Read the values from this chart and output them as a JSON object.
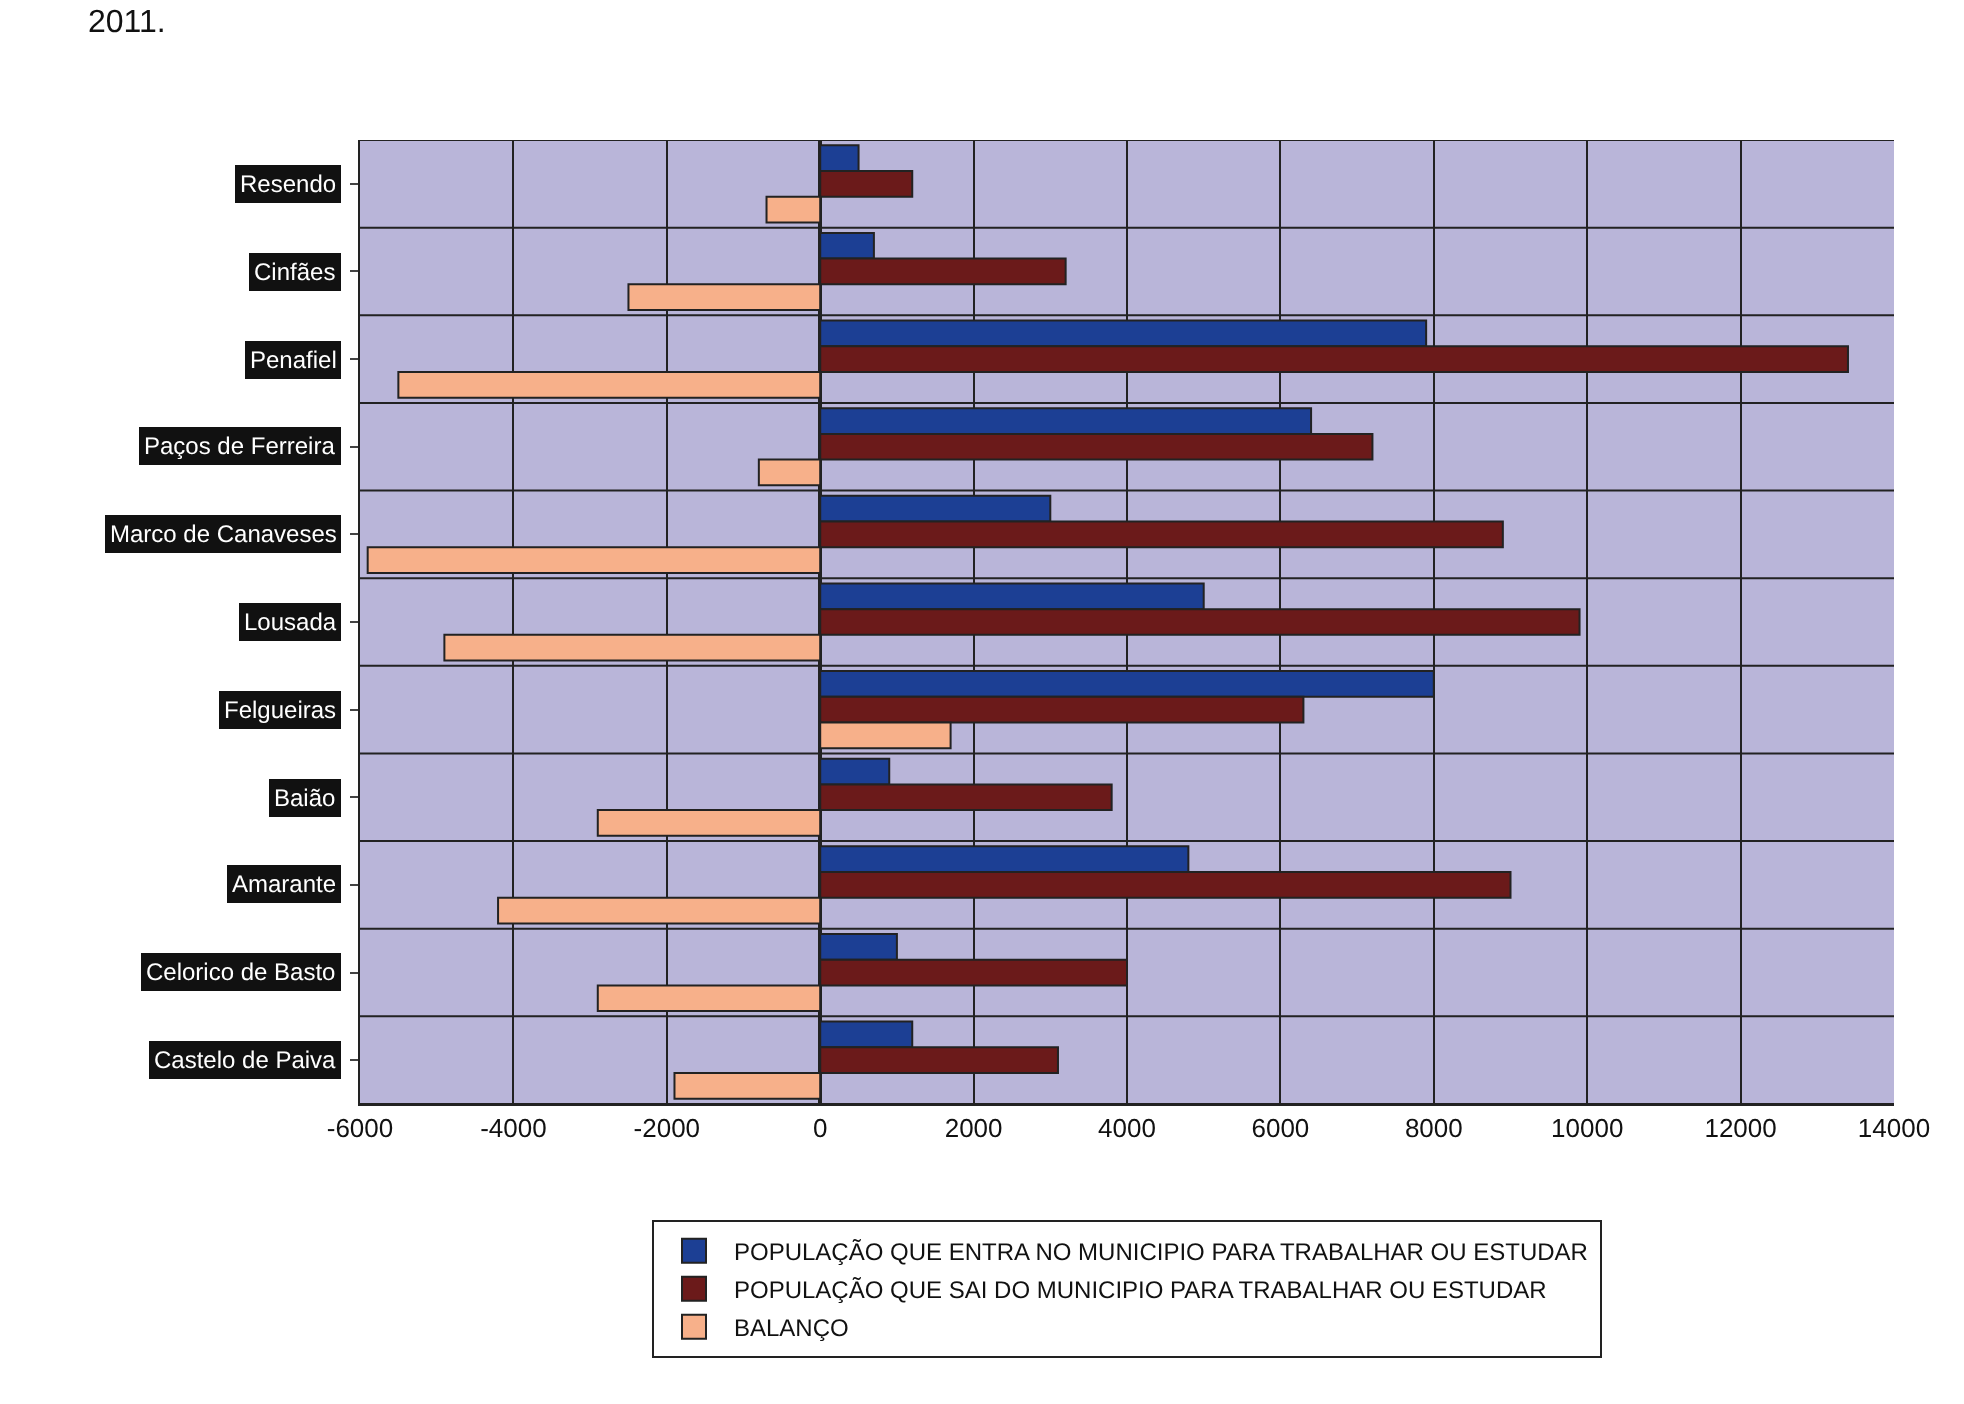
{
  "chart_data": {
    "type": "bar",
    "orientation": "horizontal",
    "categories": [
      "Resendo",
      "Cinfães",
      "Penafiel",
      "Paços de Ferreira",
      "Marco de Canaveses",
      "Lousada",
      "Felgueiras",
      "Baião",
      "Amarante",
      "Celorico de Basto",
      "Castelo de Paiva"
    ],
    "series": [
      {
        "name": "POPULAÇÃO QUE ENTRA NO MUNICIPIO PARA TRABALHAR OU ESTUDAR",
        "color": "#1c3f94",
        "values": [
          500,
          700,
          7900,
          6400,
          3000,
          5000,
          8000,
          900,
          4800,
          1000,
          1200
        ]
      },
      {
        "name": "POPULAÇÃO QUE SAI DO MUNICIPIO PARA TRABALHAR OU ESTUDAR",
        "color": "#6b1a1a",
        "values": [
          1200,
          3200,
          13400,
          7200,
          8900,
          9900,
          6300,
          3800,
          9000,
          4000,
          3100
        ]
      },
      {
        "name": "BALANÇO",
        "color": "#f7b08a",
        "values": [
          -700,
          -2500,
          -5500,
          -800,
          -5900,
          -4900,
          1700,
          -2900,
          -4200,
          -2900,
          -1900
        ]
      }
    ],
    "xlim": [
      -6000,
      14000
    ],
    "xticks": [
      -6000,
      -4000,
      -2000,
      0,
      2000,
      4000,
      6000,
      8000,
      10000,
      12000,
      14000
    ],
    "grid": true,
    "legend": "bottom",
    "annotations": [
      "2011."
    ]
  }
}
